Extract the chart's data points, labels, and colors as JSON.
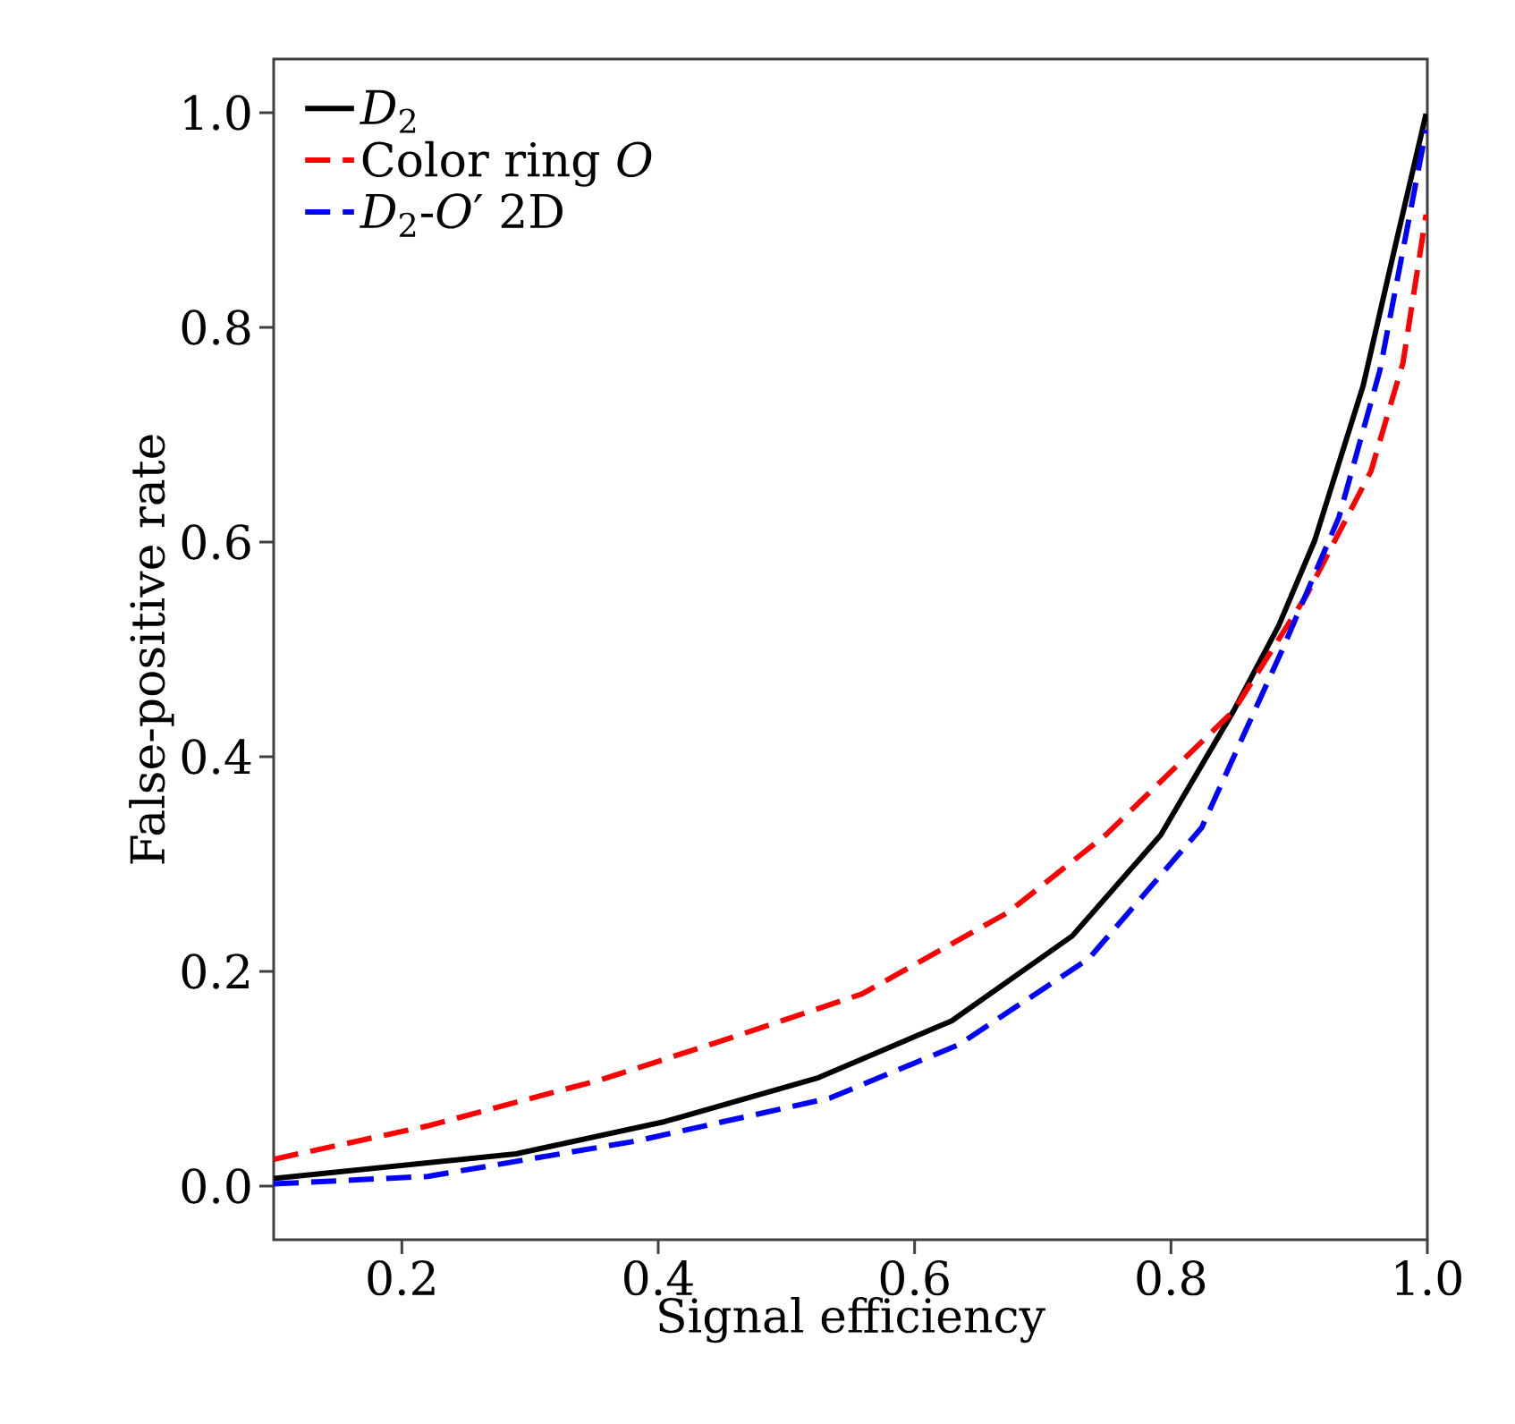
{
  "chart_data": {
    "type": "line",
    "xlabel": "Signal efficiency",
    "ylabel": "False-positive rate",
    "xlim": [
      0.1,
      1.0
    ],
    "ylim": [
      -0.05,
      1.05
    ],
    "xticks": [
      0.2,
      0.4,
      0.6,
      0.8,
      {
        "value": 1,
        "label": "1.0"
      }
    ],
    "yticks": [
      {
        "value": 0,
        "label": "0.0"
      },
      0.2,
      0.4,
      0.6,
      0.8,
      {
        "value": 1,
        "label": "1.0"
      }
    ],
    "grid": false,
    "legend": "top left",
    "series": [
      {
        "name": "*D*$_{2}$",
        "color": "#000000",
        "line_style": "solid",
        "x": [
          0.1,
          0.289,
          0.405,
          0.525,
          0.629,
          0.723,
          0.792,
          0.849,
          0.884,
          0.912,
          0.95,
          0.975,
          0.999
        ],
        "values": [
          0.007,
          0.03,
          0.06,
          0.101,
          0.154,
          0.233,
          0.327,
          0.443,
          0.522,
          0.601,
          0.746,
          0.876,
          0.999
        ]
      },
      {
        "name": "Color ring *O*",
        "color": "#ff0000",
        "line_style": "dashed",
        "x": [
          0.1,
          0.22,
          0.358,
          0.459,
          0.559,
          0.673,
          0.749,
          0.849,
          0.906,
          0.956,
          0.981,
          0.999
        ],
        "values": [
          0.025,
          0.056,
          0.1,
          0.139,
          0.179,
          0.255,
          0.327,
          0.443,
          0.551,
          0.666,
          0.767,
          0.905
        ]
      },
      {
        "name": "*D*$_{2}$-*O*′ 2D",
        "color": "#0000ff",
        "line_style": "dashed",
        "x": [
          0.1,
          0.22,
          0.383,
          0.534,
          0.635,
          0.736,
          0.824,
          0.887,
          0.931,
          0.963,
          0.999
        ],
        "values": [
          0.002,
          0.009,
          0.042,
          0.082,
          0.132,
          0.212,
          0.334,
          0.5,
          0.623,
          0.76,
          0.984
        ]
      }
    ]
  }
}
